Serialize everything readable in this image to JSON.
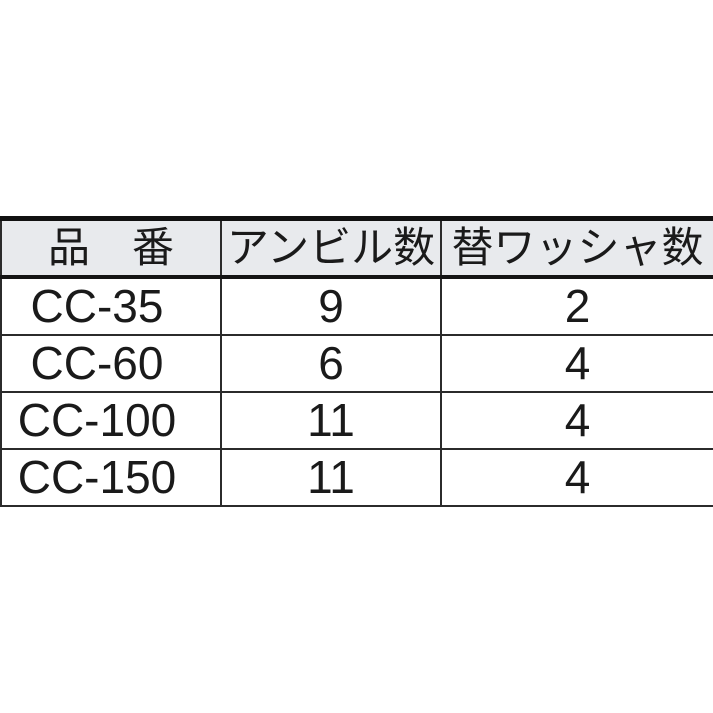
{
  "page": {
    "background": "#ffffff"
  },
  "table": {
    "title": "product-spec-table",
    "header_bg": "#e8eaed",
    "border_color": "#2b2b2b",
    "thick_border_color": "#111111",
    "columns": {
      "product": "品　番",
      "anvil_count": "アンビル数",
      "washer_count": "替ワッシャ数"
    },
    "rows": [
      {
        "product": "CC-35",
        "anvil_count": "9",
        "washer_count": "2"
      },
      {
        "product": "CC-60",
        "anvil_count": "6",
        "washer_count": "4"
      },
      {
        "product": "CC-100",
        "anvil_count": "11",
        "washer_count": "4"
      },
      {
        "product": "CC-150",
        "anvil_count": "11",
        "washer_count": "4"
      }
    ]
  }
}
